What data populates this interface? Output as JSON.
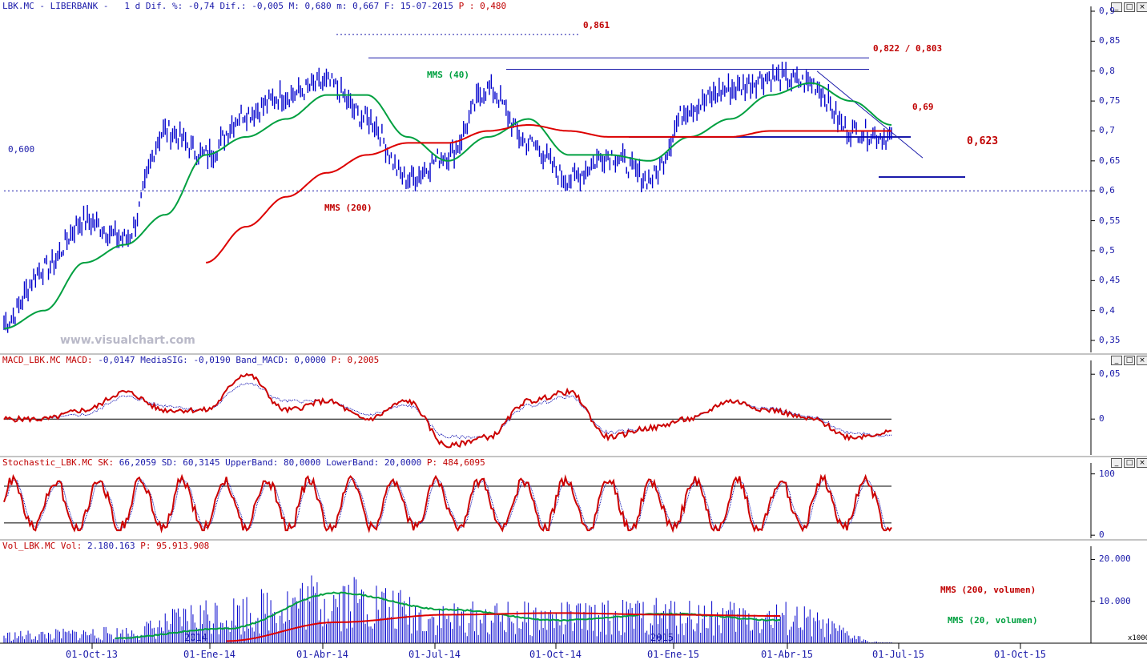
{
  "price_header": {
    "ticker": "LBK.MC",
    "sep": " - ",
    "name": "LIBERBANK",
    "rest": " -   1 d Dif. %: -0,74 Dif.: -0,005 M: 0,680 m: 0,667 F: 15-07-2015 ",
    "p": "P : 0,480"
  },
  "macd_header": {
    "name": "MACD_LBK.MC",
    "macd": " MACD: ",
    "macd_v": "-0,0147",
    "sig": " MediaSIG: ",
    "sig_v": "-0,0190",
    "band": " Band_MACD: ",
    "band_v": "0,0000",
    "p": " P: 0,2005"
  },
  "stoch_header": {
    "name": "Stochastic_LBK.MC",
    "sk": " SK: ",
    "sk_v": "66,2059",
    "sd": " SD: ",
    "sd_v": "60,3145",
    "ub": " UpperBand: ",
    "ub_v": "80,0000",
    "lb": " LowerBand: ",
    "lb_v": "20,0000",
    "p": " P: 484,6095"
  },
  "vol_header": {
    "name": "Vol_LBK.MC",
    "vol": " Vol: ",
    "vol_v": "2.180.163",
    "p": " P: 95.913.908"
  },
  "watermark": "www.visualchart.com",
  "annotations": {
    "p861": "0,861",
    "p822": "0,822 / 0,803",
    "p69": "0,69",
    "p623": "0,623",
    "p600": "0,600",
    "mms40": "MMS (40)",
    "mms200": "MMS (200)",
    "mms200v": "MMS (200, volumen)",
    "mms20v": "MMS (20, volumen)",
    "y2014": "2014",
    "y2015": "2015",
    "x1000": "x1000"
  },
  "colors": {
    "price": "#0000cc",
    "mms40": "#00a040",
    "mms200": "#dd0000",
    "axis": "#1a1aaa",
    "text_red": "#c00000"
  },
  "chart_data": [
    {
      "type": "line",
      "title": "LBK.MC - LIBERBANK",
      "ylim": [
        0.33,
        0.9
      ],
      "yticks": [
        "0,9",
        "0,85",
        "0,8",
        "0,75",
        "0,7",
        "0,65",
        "0,6",
        "0,55",
        "0,5",
        "0,45",
        "0,4",
        "0,35"
      ],
      "x": [
        "2013-09-01",
        "2013-10-01",
        "2013-11-01",
        "2013-12-01",
        "2014-01-01",
        "2014-02-01",
        "2014-03-01",
        "2014-04-01",
        "2014-05-01",
        "2014-06-01",
        "2014-07-01",
        "2014-08-01",
        "2014-09-01",
        "2014-10-01",
        "2014-11-01",
        "2014-12-01",
        "2015-01-01",
        "2015-02-01",
        "2015-03-01",
        "2015-04-01",
        "2015-05-01",
        "2015-06-01",
        "2015-07-15"
      ],
      "series": [
        {
          "name": "price",
          "values": [
            0.38,
            0.47,
            0.55,
            0.52,
            0.7,
            0.66,
            0.73,
            0.76,
            0.78,
            0.72,
            0.62,
            0.66,
            0.77,
            0.68,
            0.62,
            0.66,
            0.62,
            0.74,
            0.77,
            0.79,
            0.78,
            0.7,
            0.69
          ]
        },
        {
          "name": "MMS (40)",
          "values": [
            0.37,
            0.4,
            0.48,
            0.51,
            0.56,
            0.66,
            0.69,
            0.72,
            0.76,
            0.76,
            0.69,
            0.65,
            0.69,
            0.72,
            0.66,
            0.66,
            0.65,
            0.69,
            0.72,
            0.76,
            0.78,
            0.75,
            0.71
          ]
        },
        {
          "name": "MMS (200)",
          "values": [
            null,
            null,
            null,
            null,
            null,
            0.48,
            0.54,
            0.59,
            0.63,
            0.66,
            0.68,
            0.68,
            0.7,
            0.71,
            0.7,
            0.69,
            0.69,
            0.69,
            0.69,
            0.7,
            0.7,
            0.7,
            0.7
          ]
        }
      ],
      "levels": [
        0.861,
        0.822,
        0.803,
        0.69,
        0.623,
        0.6
      ]
    },
    {
      "type": "line",
      "title": "MACD_LBK.MC",
      "ylim": [
        -0.04,
        0.06
      ],
      "yticks": [
        "0,05",
        "0"
      ],
      "series": [
        {
          "name": "MACD",
          "values": [
            0,
            0,
            0.01,
            0.03,
            0.01,
            0.01,
            0.05,
            0.01,
            0.02,
            0.0,
            0.02,
            -0.03,
            -0.02,
            0.02,
            0.03,
            -0.02,
            -0.01,
            0.0,
            0.02,
            0.01,
            0.0,
            -0.02,
            -0.0147
          ]
        },
        {
          "name": "MediaSIG",
          "values": [
            0,
            0,
            0.005,
            0.025,
            0.015,
            0.01,
            0.04,
            0.02,
            0.02,
            0.005,
            0.015,
            -0.02,
            -0.02,
            0.015,
            0.025,
            -0.015,
            -0.01,
            0.0,
            0.02,
            0.012,
            0.002,
            -0.015,
            -0.019
          ]
        }
      ]
    },
    {
      "type": "line",
      "title": "Stochastic_LBK.MC",
      "ylim": [
        -5,
        110
      ],
      "yticks": [
        "100",
        "0"
      ],
      "series": [
        {
          "name": "SK",
          "values": [
            50,
            10,
            80,
            90,
            60,
            70,
            15,
            95,
            80,
            40,
            90,
            10,
            80,
            15,
            95,
            70,
            20,
            90,
            95,
            60,
            90,
            15,
            66.2
          ]
        },
        {
          "name": "SD",
          "values": [
            50,
            15,
            75,
            85,
            62,
            68,
            20,
            90,
            78,
            42,
            85,
            15,
            75,
            20,
            90,
            68,
            25,
            85,
            90,
            62,
            85,
            20,
            60.3
          ]
        }
      ],
      "bands": [
        80,
        20
      ]
    },
    {
      "type": "bar",
      "title": "Vol_LBK.MC",
      "ylim": [
        0,
        22000
      ],
      "yticks": [
        "20.000",
        "10.000"
      ],
      "categories": [
        "01-Oct-13",
        "01-Ene-14",
        "01-Abr-14",
        "01-Jul-14",
        "01-Oct-14",
        "01-Ene-15",
        "01-Abr-15",
        "01-Jul-15",
        "01-Oct-15"
      ],
      "series": [
        {
          "name": "Vol",
          "values": [
            1500,
            2000,
            6000,
            9000,
            5000,
            5000,
            5500,
            5000,
            0
          ]
        },
        {
          "name": "MMS (200, volumen)",
          "values": [
            null,
            null,
            500,
            5000,
            6800,
            7200,
            6800,
            6500,
            null
          ]
        },
        {
          "name": "MMS (20, volumen)",
          "values": [
            null,
            1200,
            3500,
            12000,
            8000,
            5500,
            7000,
            5500,
            null
          ]
        }
      ]
    }
  ]
}
